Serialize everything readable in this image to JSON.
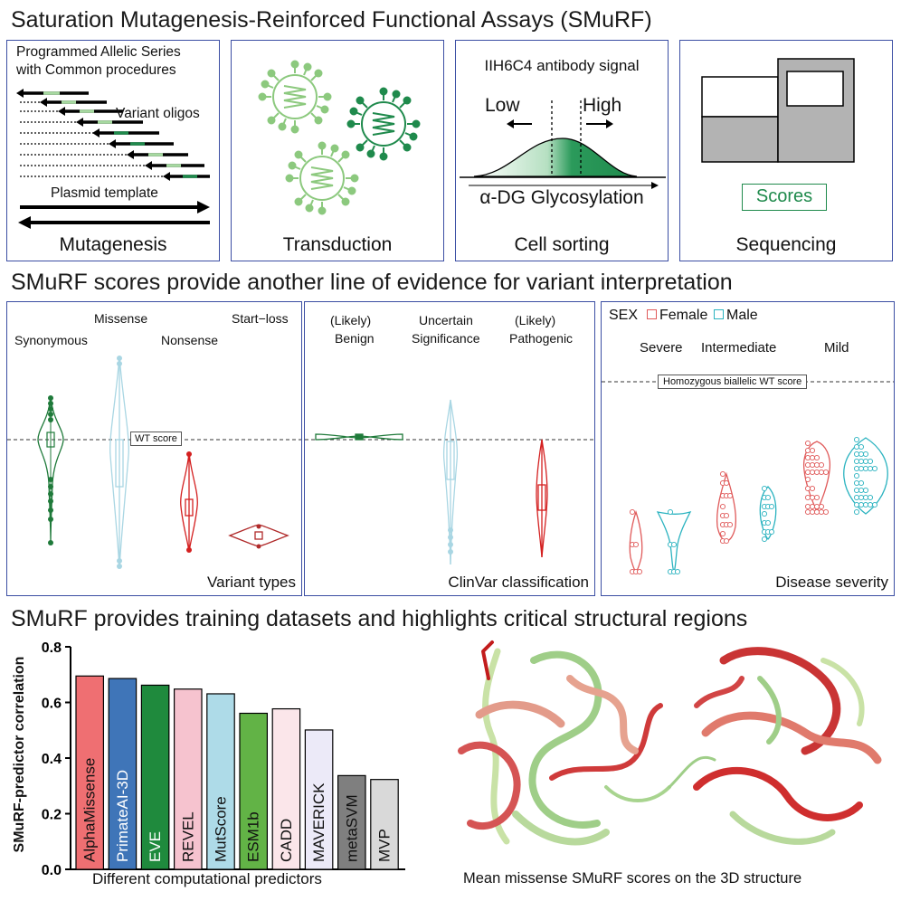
{
  "titles": {
    "main": "Saturation Mutagenesis-Reinforced Functional Assays (SMuRF)",
    "section2": "SMuRF scores provide another line of evidence for variant interpretation",
    "section3": "SMuRF provides training datasets and highlights critical structural regions"
  },
  "workflow": {
    "mutagenesis": {
      "heading_line1": "Programmed Allelic Series",
      "heading_line2": "with Common procedures",
      "oligo_label": "Variant oligos",
      "template_label": "Plasmid template",
      "caption": "Mutagenesis"
    },
    "transduction": {
      "caption": "Transduction"
    },
    "cell_sorting": {
      "heading": "IIH6C4 antibody signal",
      "low": "Low",
      "high": "High",
      "axis_label": "α-DG Glycosylation",
      "caption": "Cell sorting"
    },
    "sequencing": {
      "scores_label": "Scores",
      "caption": "Sequencing"
    }
  },
  "violin_panels": {
    "variant_types": {
      "categories": [
        "Synonymous",
        "Missense",
        "Nonsense",
        "Start−loss"
      ],
      "reference_label": "WT score",
      "caption": "Variant types"
    },
    "clinvar": {
      "categories": [
        {
          "line1": "(Likely)",
          "line2": "Benign"
        },
        {
          "line1": "Uncertain",
          "line2": "Significance"
        },
        {
          "line1": "(Likely)",
          "line2": "Pathogenic"
        }
      ],
      "caption": "ClinVar classification"
    },
    "severity": {
      "legend_title": "SEX",
      "legend_items": [
        {
          "label": "Female",
          "color": "#e05a5a"
        },
        {
          "label": "Male",
          "color": "#2bb3c0"
        }
      ],
      "categories": [
        "Severe",
        "Intermediate",
        "Mild"
      ],
      "reference_label": "Homozygous biallelic WT score",
      "caption": "Disease severity"
    }
  },
  "chart_data": {
    "type": "bar",
    "categories": [
      "AlphaMissense",
      "PrimateAI-3D",
      "EVE",
      "REVEL",
      "MutScore",
      "ESM1b",
      "CADD",
      "MAVERICK",
      "metaSVM",
      "MVP"
    ],
    "values": [
      0.695,
      0.686,
      0.662,
      0.648,
      0.631,
      0.561,
      0.577,
      0.501,
      0.337,
      0.323
    ],
    "colors": [
      "#ef6f72",
      "#3f75b8",
      "#1f8a3d",
      "#f6c3cf",
      "#aedbe8",
      "#62b346",
      "#fbe6ea",
      "#eceaf8",
      "#7f7f7f",
      "#d9d9d9"
    ],
    "xlabel": "Different computational predictors",
    "ylabel": "SMuRF-predictor correlation",
    "ylim": [
      0,
      0.8
    ],
    "yticks": [
      "0.0",
      "0.2",
      "0.4",
      "0.6",
      "0.8"
    ]
  },
  "structure": {
    "caption": "Mean missense SMuRF scores on the 3D structure"
  },
  "colors": {
    "panel_border": "#3b4ea3",
    "green": "#1f8a4c",
    "light_green": "#8cc97e",
    "red": "#d42020",
    "light_blue": "#a9d6e3"
  }
}
